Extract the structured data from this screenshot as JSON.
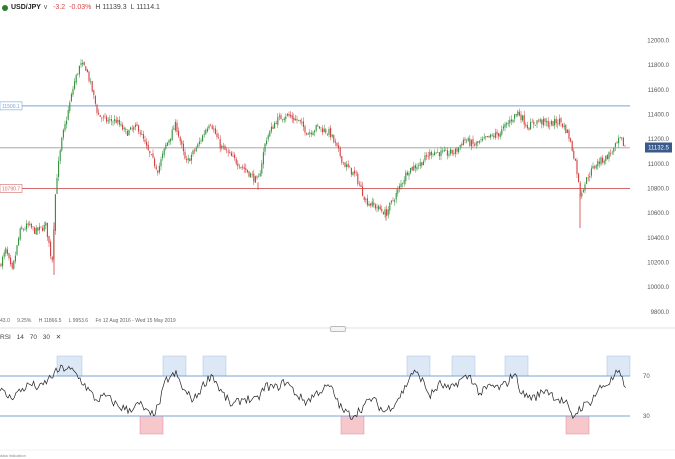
{
  "header": {
    "symbol": "USD/JPY",
    "change": "-3.2",
    "change_pct": "-0.03%",
    "high": "H 11139.3",
    "low": "L 11114.1",
    "status_color": "#2e7d32",
    "negative_color": "#d64545"
  },
  "info_bar": {
    "left_value": "43.0",
    "pct": "9.25%",
    "high": "H 11866.5",
    "low": "L 9953.6",
    "date_range": "Fri 12 Aug 2016 - Wed 15 May 2019"
  },
  "rsi": {
    "name": "RSI",
    "period": "14",
    "upper": "70",
    "lower": "30",
    "close_icon": "close-icon"
  },
  "footer_note": "data indication",
  "chart_data": [
    {
      "type": "candlestick",
      "y_ticks": [
        "12000.0",
        "11800.0",
        "11600.0",
        "11400.0",
        "11200.0",
        "11000.0",
        "10800.0",
        "10600.0",
        "10400.0",
        "10200.0",
        "10000.0",
        "9800.0"
      ],
      "ylim": [
        9750,
        12150
      ],
      "last_price": "11132.5",
      "last_price_value": 11132.5,
      "levels": [
        {
          "label": "11500.1",
          "value": 11470,
          "color": "#7aa3d6"
        },
        {
          "label": "10790.7",
          "value": 10800,
          "color": "#d46a6a"
        }
      ],
      "reference_line": 11130,
      "up_color": "#2f8f3a",
      "down_color": "#d23c3c",
      "path_anchors": [
        [
          0,
          10180
        ],
        [
          6,
          10300
        ],
        [
          12,
          10120
        ],
        [
          20,
          10450
        ],
        [
          28,
          10500
        ],
        [
          36,
          10450
        ],
        [
          46,
          10500
        ],
        [
          52,
          10200
        ],
        [
          56,
          10850
        ],
        [
          62,
          11200
        ],
        [
          68,
          11420
        ],
        [
          74,
          11650
        ],
        [
          80,
          11800
        ],
        [
          86,
          11780
        ],
        [
          92,
          11600
        ],
        [
          98,
          11400
        ],
        [
          106,
          11350
        ],
        [
          116,
          11350
        ],
        [
          126,
          11250
        ],
        [
          138,
          11300
        ],
        [
          148,
          11100
        ],
        [
          158,
          10950
        ],
        [
          166,
          11150
        ],
        [
          176,
          11320
        ],
        [
          186,
          11000
        ],
        [
          198,
          11150
        ],
        [
          210,
          11350
        ],
        [
          220,
          11150
        ],
        [
          232,
          11050
        ],
        [
          246,
          10950
        ],
        [
          258,
          10850
        ],
        [
          266,
          11200
        ],
        [
          276,
          11350
        ],
        [
          286,
          11400
        ],
        [
          298,
          11350
        ],
        [
          308,
          11250
        ],
        [
          318,
          11300
        ],
        [
          330,
          11250
        ],
        [
          344,
          11000
        ],
        [
          356,
          10900
        ],
        [
          366,
          10700
        ],
        [
          376,
          10650
        ],
        [
          386,
          10600
        ],
        [
          396,
          10750
        ],
        [
          408,
          10950
        ],
        [
          420,
          11000
        ],
        [
          432,
          11100
        ],
        [
          446,
          11080
        ],
        [
          456,
          11100
        ],
        [
          464,
          11200
        ],
        [
          474,
          11150
        ],
        [
          486,
          11200
        ],
        [
          500,
          11250
        ],
        [
          510,
          11350
        ],
        [
          518,
          11420
        ],
        [
          528,
          11300
        ],
        [
          538,
          11350
        ],
        [
          550,
          11320
        ],
        [
          560,
          11350
        ],
        [
          568,
          11250
        ],
        [
          576,
          11000
        ],
        [
          580,
          10750
        ],
        [
          588,
          10900
        ],
        [
          596,
          11000
        ],
        [
          606,
          11050
        ],
        [
          614,
          11120
        ],
        [
          620,
          11200
        ],
        [
          626,
          11130
        ]
      ],
      "spike_lows": [
        [
          54,
          10100
        ],
        [
          258,
          10790
        ],
        [
          386,
          10540
        ],
        [
          580,
          10480
        ]
      ]
    },
    {
      "type": "line",
      "title": "RSI 14",
      "ylim": [
        0,
        100
      ],
      "y_ticks": [
        "70",
        "30"
      ],
      "overbought": 70,
      "oversold": 30,
      "line_color": "#222222",
      "overbought_zone_color": "#dce8f6",
      "oversold_zone_color": "#f6c8cb",
      "path_anchors": [
        [
          0,
          56
        ],
        [
          10,
          48
        ],
        [
          20,
          55
        ],
        [
          30,
          62
        ],
        [
          40,
          58
        ],
        [
          52,
          70
        ],
        [
          60,
          77
        ],
        [
          66,
          78
        ],
        [
          74,
          74
        ],
        [
          84,
          62
        ],
        [
          96,
          46
        ],
        [
          106,
          50
        ],
        [
          118,
          40
        ],
        [
          128,
          36
        ],
        [
          140,
          42
        ],
        [
          150,
          30
        ],
        [
          158,
          38
        ],
        [
          166,
          66
        ],
        [
          176,
          72
        ],
        [
          184,
          55
        ],
        [
          194,
          46
        ],
        [
          204,
          62
        ],
        [
          212,
          72
        ],
        [
          220,
          56
        ],
        [
          232,
          40
        ],
        [
          244,
          48
        ],
        [
          256,
          45
        ],
        [
          266,
          60
        ],
        [
          276,
          58
        ],
        [
          286,
          65
        ],
        [
          296,
          52
        ],
        [
          306,
          44
        ],
        [
          318,
          54
        ],
        [
          330,
          60
        ],
        [
          342,
          36
        ],
        [
          352,
          30
        ],
        [
          362,
          38
        ],
        [
          372,
          48
        ],
        [
          384,
          34
        ],
        [
          394,
          42
        ],
        [
          404,
          56
        ],
        [
          412,
          74
        ],
        [
          420,
          70
        ],
        [
          430,
          50
        ],
        [
          440,
          62
        ],
        [
          450,
          56
        ],
        [
          460,
          66
        ],
        [
          470,
          70
        ],
        [
          480,
          52
        ],
        [
          490,
          60
        ],
        [
          500,
          58
        ],
        [
          508,
          64
        ],
        [
          514,
          74
        ],
        [
          522,
          52
        ],
        [
          534,
          48
        ],
        [
          546,
          57
        ],
        [
          556,
          48
        ],
        [
          566,
          43
        ],
        [
          572,
          28
        ],
        [
          580,
          38
        ],
        [
          590,
          44
        ],
        [
          600,
          58
        ],
        [
          610,
          64
        ],
        [
          618,
          74
        ],
        [
          624,
          62
        ]
      ],
      "overbought_zones": [
        [
          57,
          82
        ],
        [
          163,
          186
        ],
        [
          203,
          226
        ],
        [
          407,
          430
        ],
        [
          452,
          475
        ],
        [
          505,
          528
        ],
        [
          607,
          630
        ]
      ],
      "oversold_zones": [
        [
          140,
          163
        ],
        [
          341,
          364
        ],
        [
          566,
          589
        ]
      ]
    }
  ]
}
